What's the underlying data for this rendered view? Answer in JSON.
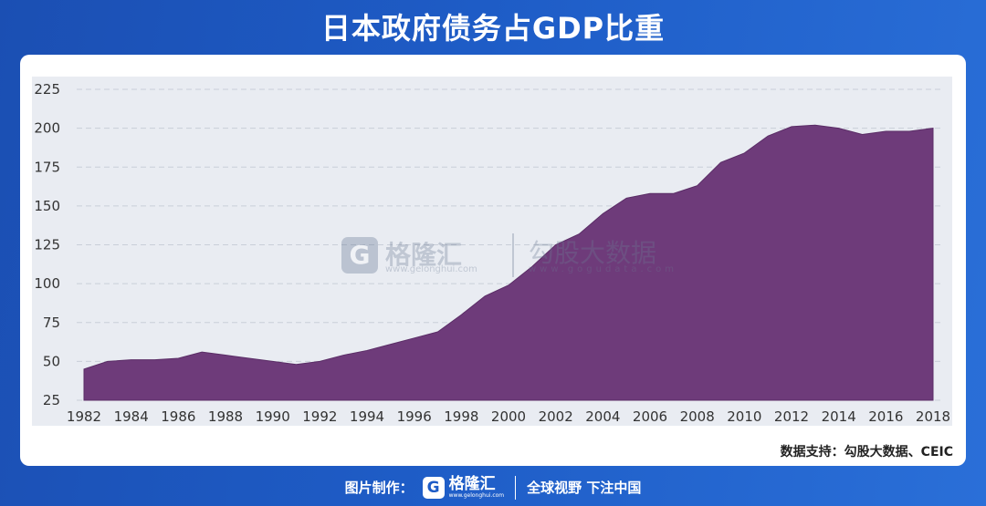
{
  "title": "日本政府债务占GDP比重",
  "source": "数据支持：勾股大数据、CEIC",
  "watermark": {
    "logo_letter": "G",
    "name": "格隆汇",
    "url": "www.gelonghui.com",
    "name2": "勾股大数据",
    "url2": "www.gogudata.com"
  },
  "footer": {
    "credit": "图片制作：",
    "logo_letter": "G",
    "logo_name": "格隆汇",
    "logo_url": "www.gelonghui.com",
    "slogan": "全球视野 下注中国"
  },
  "colors": {
    "area_fill": "#6e3b7a",
    "plot_bg": "#e9ecf2",
    "grid": "#c9ced8",
    "background": "#1e5cc6"
  },
  "chart_data": {
    "type": "area",
    "title": "日本政府债务占GDP比重",
    "xlabel": "",
    "ylabel": "",
    "ylim": [
      25,
      225
    ],
    "yticks": [
      25,
      50,
      75,
      100,
      125,
      150,
      175,
      200,
      225
    ],
    "xlim": [
      1982,
      2018
    ],
    "xticks": [
      1982,
      1984,
      1986,
      1988,
      1990,
      1992,
      1994,
      1996,
      1998,
      2000,
      2002,
      2004,
      2006,
      2008,
      2010,
      2012,
      2014,
      2016,
      2018
    ],
    "grid": "horizontal dashed",
    "series": [
      {
        "x": [
          1982,
          1983,
          1984,
          1985,
          1986,
          1987,
          1988,
          1989,
          1990,
          1991,
          1992,
          1993,
          1994,
          1995,
          1996,
          1997,
          1998,
          1999,
          2000,
          2001,
          2002,
          2003,
          2004,
          2005,
          2006,
          2007,
          2008,
          2009,
          2010,
          2011,
          2012,
          2013,
          2014,
          2015,
          2016,
          2017,
          2018
        ],
        "values": [
          45,
          50,
          51,
          51,
          52,
          56,
          54,
          52,
          50,
          48,
          50,
          54,
          57,
          61,
          65,
          69,
          80,
          92,
          99,
          111,
          125,
          132,
          145,
          155,
          158,
          158,
          163,
          178,
          184,
          195,
          201,
          202,
          200,
          196,
          198,
          198,
          200
        ]
      }
    ]
  }
}
